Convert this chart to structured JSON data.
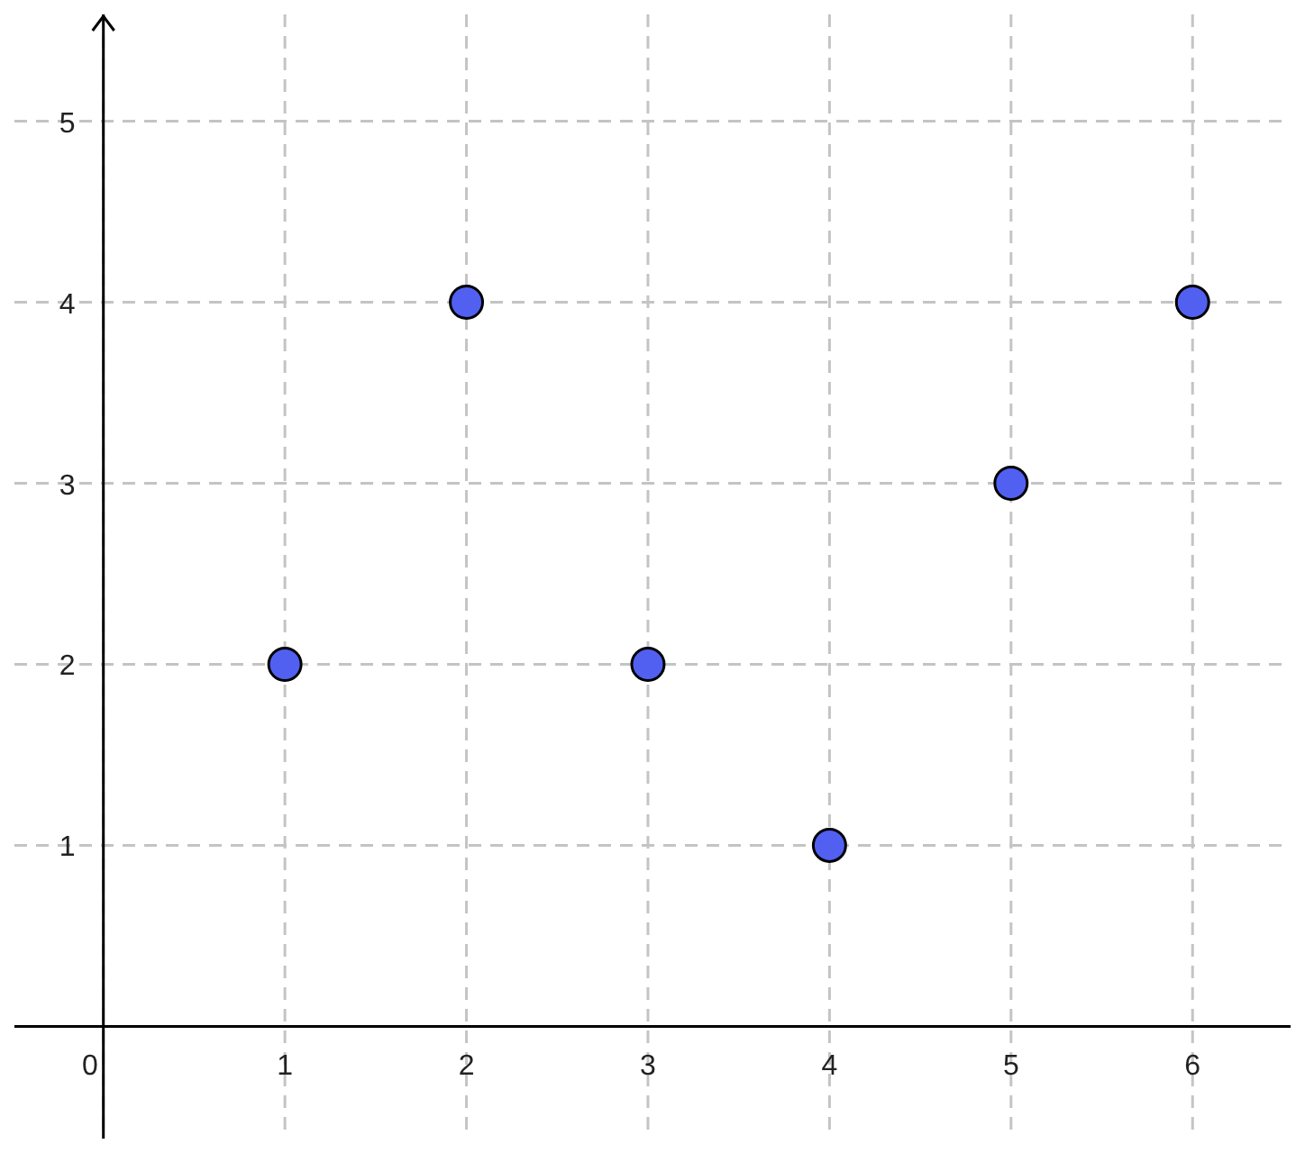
{
  "chart_data": {
    "type": "scatter",
    "x": [
      1,
      2,
      3,
      4,
      5,
      6
    ],
    "values": [
      2,
      4,
      2,
      1,
      3,
      4
    ],
    "color": "#5160f0",
    "xlim": [
      -0.49,
      6.54
    ],
    "ylim": [
      -0.62,
      5.59
    ],
    "xticks": [
      0,
      1,
      2,
      3,
      4,
      5,
      6
    ],
    "yticks": [
      1,
      2,
      3,
      4,
      5
    ],
    "grid": true,
    "marker": "circle",
    "legend": false
  }
}
